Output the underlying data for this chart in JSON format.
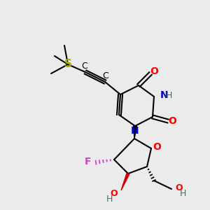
{
  "background_color": "#ebebeb",
  "atom_colors": {
    "S": "#aaaa00",
    "C": "#000000",
    "N": "#0000cc",
    "O": "#ff0000",
    "F": "#cc44cc",
    "H": "#407070",
    "default": "#000000"
  }
}
